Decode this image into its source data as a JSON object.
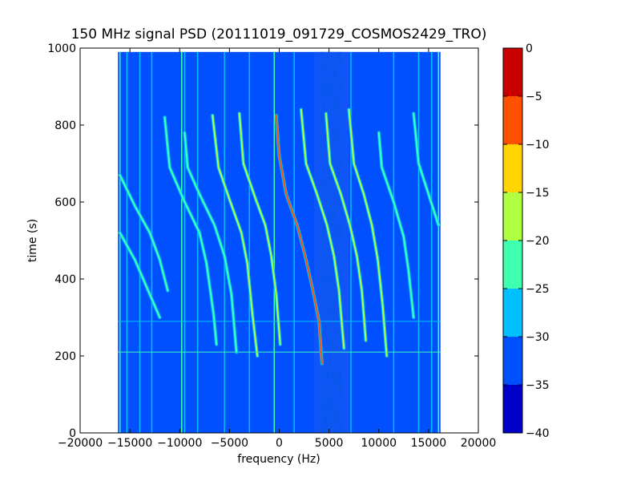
{
  "chart_data": {
    "type": "heatmap",
    "title": "150 MHz signal PSD (20111019_091729_COSMOS2429_TRO)",
    "xlabel": "frequency (Hz)",
    "ylabel": "time (s)",
    "xlim": [
      -20000,
      20000
    ],
    "ylim": [
      0,
      1000
    ],
    "x_ticks": [
      -20000,
      -15000,
      -10000,
      -5000,
      0,
      5000,
      10000,
      15000,
      20000
    ],
    "y_ticks": [
      0,
      200,
      400,
      600,
      800,
      1000
    ],
    "data_extent": {
      "x": [
        -16200,
        16200
      ],
      "y": [
        0,
        990
      ]
    },
    "grid": false,
    "background_level_db": -35,
    "colorbar": {
      "levels": [
        -40,
        -35,
        -30,
        -25,
        -20,
        -15,
        -10,
        -5,
        0
      ],
      "colors": [
        "#0000c8",
        "#0050ff",
        "#00c0ff",
        "#40ffb0",
        "#b0ff40",
        "#ffd400",
        "#ff5000",
        "#c80000"
      ],
      "ticks": [
        -40,
        -35,
        -30,
        -25,
        -20,
        -15,
        -10,
        -5,
        0
      ]
    },
    "vertical_lines": [
      {
        "x": -16000,
        "level_db": -25
      },
      {
        "x": -15300,
        "level_db": -30
      },
      {
        "x": -14000,
        "level_db": -30
      },
      {
        "x": -12800,
        "level_db": -30
      },
      {
        "x": -9800,
        "level_db": -25
      },
      {
        "x": -9500,
        "level_db": -30
      },
      {
        "x": -8200,
        "level_db": -30
      },
      {
        "x": -5500,
        "level_db": -30
      },
      {
        "x": -3000,
        "level_db": -30
      },
      {
        "x": -500,
        "level_db": -25
      },
      {
        "x": 1500,
        "level_db": -30
      },
      {
        "x": 7200,
        "level_db": -30
      },
      {
        "x": 11500,
        "level_db": -30
      },
      {
        "x": 14000,
        "level_db": -30
      },
      {
        "x": 15300,
        "level_db": -30
      },
      {
        "x": 16000,
        "level_db": -25
      }
    ],
    "horizontal_lines": [
      {
        "y": 210,
        "level_db": -25
      },
      {
        "y": 290,
        "level_db": -30
      }
    ],
    "traces": [
      {
        "level_db": -25,
        "points": [
          [
            -16000,
            670
          ],
          [
            -14500,
            590
          ],
          [
            -13000,
            520
          ],
          [
            -12000,
            450
          ],
          [
            -11200,
            370
          ]
        ]
      },
      {
        "level_db": -25,
        "points": [
          [
            -16000,
            520
          ],
          [
            -14500,
            450
          ],
          [
            -13500,
            390
          ],
          [
            -12500,
            330
          ],
          [
            -12000,
            300
          ]
        ]
      },
      {
        "level_db": -25,
        "points": [
          [
            -11500,
            820
          ],
          [
            -11000,
            690
          ],
          [
            -9500,
            600
          ],
          [
            -8000,
            520
          ],
          [
            -7300,
            440
          ],
          [
            -6600,
            310
          ],
          [
            -6300,
            230
          ]
        ]
      },
      {
        "level_db": -25,
        "points": [
          [
            -9500,
            780
          ],
          [
            -9200,
            690
          ],
          [
            -8000,
            620
          ],
          [
            -6500,
            540
          ],
          [
            -5500,
            460
          ],
          [
            -4800,
            360
          ],
          [
            -4300,
            210
          ]
        ]
      },
      {
        "level_db": -20,
        "points": [
          [
            -6700,
            825
          ],
          [
            -6100,
            690
          ],
          [
            -4900,
            600
          ],
          [
            -3800,
            520
          ],
          [
            -3200,
            440
          ],
          [
            -2700,
            310
          ],
          [
            -2200,
            200
          ]
        ]
      },
      {
        "level_db": -20,
        "points": [
          [
            -4000,
            830
          ],
          [
            -3600,
            700
          ],
          [
            -2400,
            610
          ],
          [
            -1400,
            540
          ],
          [
            -800,
            460
          ],
          [
            -300,
            360
          ],
          [
            100,
            230
          ]
        ]
      },
      {
        "level_db": -10,
        "points": [
          [
            -300,
            825
          ],
          [
            0,
            720
          ],
          [
            700,
            620
          ],
          [
            1800,
            540
          ],
          [
            2600,
            460
          ],
          [
            3300,
            380
          ],
          [
            4000,
            290
          ],
          [
            4300,
            180
          ]
        ]
      },
      {
        "level_db": -20,
        "points": [
          [
            2200,
            840
          ],
          [
            2700,
            700
          ],
          [
            3800,
            620
          ],
          [
            4800,
            540
          ],
          [
            5500,
            460
          ],
          [
            6000,
            370
          ],
          [
            6500,
            220
          ]
        ]
      },
      {
        "level_db": -20,
        "points": [
          [
            4700,
            830
          ],
          [
            5100,
            700
          ],
          [
            6200,
            620
          ],
          [
            7100,
            540
          ],
          [
            7800,
            460
          ],
          [
            8300,
            370
          ],
          [
            8700,
            240
          ]
        ]
      },
      {
        "level_db": -20,
        "points": [
          [
            7000,
            840
          ],
          [
            7500,
            700
          ],
          [
            8500,
            620
          ],
          [
            9300,
            540
          ],
          [
            9900,
            450
          ],
          [
            10400,
            330
          ],
          [
            10800,
            200
          ]
        ]
      },
      {
        "level_db": -25,
        "points": [
          [
            10000,
            780
          ],
          [
            10300,
            690
          ],
          [
            11500,
            600
          ],
          [
            12500,
            510
          ],
          [
            13000,
            420
          ],
          [
            13500,
            300
          ]
        ]
      },
      {
        "level_db": -25,
        "points": [
          [
            13500,
            830
          ],
          [
            14000,
            700
          ],
          [
            15000,
            620
          ],
          [
            16000,
            540
          ]
        ]
      }
    ],
    "quiet_band": {
      "x": [
        3500,
        7000
      ],
      "level_db": -40
    }
  }
}
